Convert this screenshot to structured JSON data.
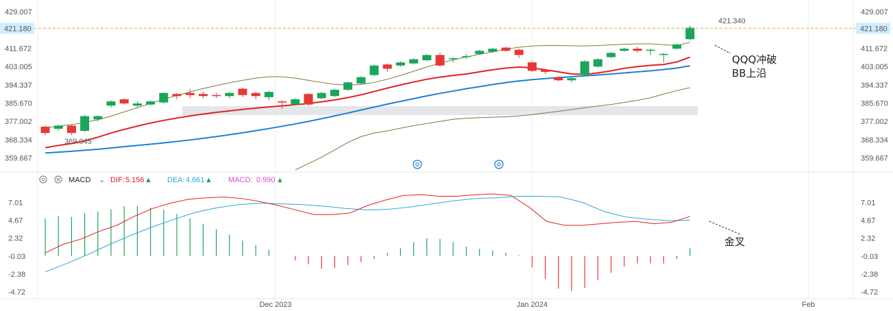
{
  "chart_data": {
    "type": "candlestick",
    "price_panel": {
      "ylim": [
        354,
        432
      ],
      "y_ticks": [
        "429.007",
        "411.672",
        "403.005",
        "394.337",
        "385.670",
        "377.002",
        "368.334",
        "359.667"
      ],
      "last_price_label": "421.180",
      "last_price": 421.18,
      "high_label": "421.340",
      "low_label": "369.045",
      "annotation_break": "QQQ冲破",
      "annotation_break2": "BB上沿",
      "candles": [
        {
          "o": 374.5,
          "c": 371.5,
          "h": 375.0,
          "l": 370.5
        },
        {
          "o": 373.5,
          "c": 375.0,
          "h": 375.5,
          "l": 372.5
        },
        {
          "o": 375.0,
          "c": 371.5,
          "h": 375.5,
          "l": 370.5
        },
        {
          "o": 372.5,
          "c": 379.5,
          "h": 380.0,
          "l": 372.0
        },
        {
          "o": 378.0,
          "c": 379.5,
          "h": 380.0,
          "l": 377.0
        },
        {
          "o": 384.5,
          "c": 386.5,
          "h": 387.0,
          "l": 383.5
        },
        {
          "o": 387.5,
          "c": 385.5,
          "h": 388.0,
          "l": 385.0
        },
        {
          "o": 384.5,
          "c": 385.5,
          "h": 386.5,
          "l": 383.5
        },
        {
          "o": 385.0,
          "c": 386.5,
          "h": 387.0,
          "l": 384.5
        },
        {
          "o": 386.0,
          "c": 390.5,
          "h": 391.0,
          "l": 385.5
        },
        {
          "o": 390.0,
          "c": 389.0,
          "h": 390.5,
          "l": 387.5
        },
        {
          "o": 390.5,
          "c": 389.5,
          "h": 392.5,
          "l": 388.0
        },
        {
          "o": 390.0,
          "c": 389.0,
          "h": 391.0,
          "l": 388.0
        },
        {
          "o": 389.5,
          "c": 389.0,
          "h": 390.5,
          "l": 388.0
        },
        {
          "o": 389.0,
          "c": 390.5,
          "h": 391.0,
          "l": 388.0
        },
        {
          "o": 392.5,
          "c": 389.5,
          "h": 393.0,
          "l": 388.5
        },
        {
          "o": 390.5,
          "c": 389.0,
          "h": 391.0,
          "l": 387.5
        },
        {
          "o": 388.5,
          "c": 391.0,
          "h": 391.5,
          "l": 387.0
        },
        {
          "o": 386.5,
          "c": 386.0,
          "h": 387.0,
          "l": 383.0
        },
        {
          "o": 385.0,
          "c": 387.5,
          "h": 388.0,
          "l": 384.5
        },
        {
          "o": 390.0,
          "c": 385.0,
          "h": 390.5,
          "l": 384.5
        },
        {
          "o": 388.0,
          "c": 390.5,
          "h": 391.0,
          "l": 387.5
        },
        {
          "o": 389.0,
          "c": 392.0,
          "h": 392.5,
          "l": 388.5
        },
        {
          "o": 392.0,
          "c": 395.5,
          "h": 396.0,
          "l": 391.5
        },
        {
          "o": 395.0,
          "c": 398.0,
          "h": 398.5,
          "l": 394.5
        },
        {
          "o": 399.0,
          "c": 403.5,
          "h": 404.0,
          "l": 398.5
        },
        {
          "o": 404.0,
          "c": 402.0,
          "h": 404.5,
          "l": 400.5
        },
        {
          "o": 403.5,
          "c": 405.0,
          "h": 405.5,
          "l": 403.0
        },
        {
          "o": 404.5,
          "c": 406.5,
          "h": 407.0,
          "l": 404.0
        },
        {
          "o": 406.0,
          "c": 408.5,
          "h": 409.0,
          "l": 405.5
        },
        {
          "o": 408.5,
          "c": 403.5,
          "h": 409.5,
          "l": 403.0
        },
        {
          "o": 406.5,
          "c": 407.0,
          "h": 407.5,
          "l": 405.0
        },
        {
          "o": 407.5,
          "c": 408.0,
          "h": 409.0,
          "l": 406.5
        },
        {
          "o": 409.0,
          "c": 410.5,
          "h": 411.0,
          "l": 408.5
        },
        {
          "o": 410.0,
          "c": 411.5,
          "h": 412.0,
          "l": 409.5
        },
        {
          "o": 412.0,
          "c": 410.5,
          "h": 412.5,
          "l": 410.0
        },
        {
          "o": 411.0,
          "c": 408.5,
          "h": 411.5,
          "l": 407.0
        },
        {
          "o": 405.0,
          "c": 401.0,
          "h": 405.5,
          "l": 400.5
        },
        {
          "o": 401.5,
          "c": 400.5,
          "h": 402.0,
          "l": 399.5
        },
        {
          "o": 398.0,
          "c": 396.5,
          "h": 398.5,
          "l": 396.0
        },
        {
          "o": 396.5,
          "c": 397.5,
          "h": 398.5,
          "l": 395.5
        },
        {
          "o": 399.0,
          "c": 405.5,
          "h": 406.0,
          "l": 398.5
        },
        {
          "o": 403.0,
          "c": 406.5,
          "h": 407.0,
          "l": 402.5
        },
        {
          "o": 407.5,
          "c": 409.5,
          "h": 410.0,
          "l": 407.0
        },
        {
          "o": 410.5,
          "c": 411.5,
          "h": 412.0,
          "l": 410.0
        },
        {
          "o": 411.5,
          "c": 410.5,
          "h": 412.5,
          "l": 409.5
        },
        {
          "o": 410.5,
          "c": 411.0,
          "h": 411.5,
          "l": 408.5
        },
        {
          "o": 408.5,
          "c": 409.0,
          "h": 409.5,
          "l": 405.0
        },
        {
          "o": 411.5,
          "c": 413.5,
          "h": 414.0,
          "l": 411.0
        },
        {
          "o": 416.0,
          "c": 421.5,
          "h": 422.5,
          "l": 415.5
        }
      ],
      "ma_red": [
        364.5,
        365.6,
        366.5,
        367.8,
        369.5,
        371.5,
        373.2,
        374.8,
        376.2,
        377.5,
        378.6,
        379.6,
        380.5,
        381.3,
        382.0,
        382.7,
        383.3,
        383.9,
        384.4,
        384.9,
        385.5,
        386.3,
        387.2,
        388.3,
        389.6,
        391.2,
        392.8,
        394.3,
        395.7,
        397.0,
        398.0,
        398.8,
        399.5,
        400.5,
        401.5,
        402.3,
        402.8,
        402.4,
        401.5,
        400.5,
        399.5,
        399.3,
        400.0,
        401.0,
        402.2,
        403.0,
        403.6,
        404.0,
        405.2,
        407.5
      ],
      "ma_blue": [
        362.0,
        362.4,
        362.8,
        363.3,
        363.8,
        364.4,
        365.0,
        365.6,
        366.2,
        366.8,
        367.5,
        368.2,
        369.0,
        369.8,
        370.7,
        371.6,
        372.6,
        373.6,
        374.7,
        375.8,
        377.0,
        378.3,
        379.6,
        381.0,
        382.4,
        383.8,
        385.2,
        386.5,
        387.8,
        389.1,
        390.3,
        391.4,
        392.5,
        393.5,
        394.5,
        395.4,
        396.2,
        396.8,
        397.3,
        397.8,
        398.2,
        398.6,
        399.0,
        399.5,
        400.0,
        400.5,
        401.0,
        401.6,
        402.3,
        403.4
      ],
      "bb_upper": [
        374.0,
        374.8,
        375.5,
        376.5,
        377.8,
        379.5,
        381.5,
        383.5,
        385.5,
        387.5,
        389.3,
        391.0,
        392.6,
        394.0,
        395.3,
        396.5,
        397.5,
        398.2,
        398.2,
        397.5,
        396.5,
        395.5,
        394.6,
        394.2,
        394.5,
        395.5,
        397.0,
        398.8,
        400.8,
        402.8,
        404.6,
        406.2,
        407.6,
        408.8,
        410.0,
        411.2,
        412.2,
        412.8,
        413.0,
        413.0,
        412.9,
        412.8,
        413.0,
        413.3,
        413.6,
        413.8,
        413.8,
        413.4,
        413.0,
        414.5
      ],
      "bb_lower": [
        null,
        null,
        null,
        null,
        null,
        null,
        null,
        null,
        null,
        null,
        null,
        null,
        null,
        null,
        null,
        null,
        null,
        null,
        null,
        354.0,
        357.0,
        360.0,
        363.5,
        367.0,
        369.8,
        371.5,
        372.5,
        373.8,
        375.0,
        376.0,
        377.0,
        378.0,
        378.5,
        378.8,
        379.0,
        379.2,
        379.6,
        380.2,
        381.0,
        381.8,
        382.6,
        383.5,
        384.3,
        385.0,
        386.0,
        387.0,
        388.2,
        390.0,
        391.6,
        393.0
      ]
    },
    "macd_panel": {
      "ylim": [
        -5.6,
        8.2
      ],
      "y_ticks": [
        "7.01",
        "4.67",
        "2.32",
        "-0.03",
        "-2.38",
        "-4.72"
      ],
      "legend": {
        "name": "MACD",
        "dif_label": "DIF:",
        "dif_value": "5.156",
        "dea_label": "DEA:",
        "dea_value": "4.661",
        "macd_label": "MACD:",
        "macd_value": "0.990"
      },
      "annotation_cross": "金叉",
      "hist": [
        4.9,
        5.2,
        5.1,
        5.6,
        5.8,
        6.1,
        6.5,
        6.5,
        6.3,
        6.0,
        5.5,
        4.9,
        4.2,
        3.5,
        2.8,
        2.0,
        1.4,
        0.8,
        0.0,
        -0.6,
        -1.1,
        -1.7,
        -1.6,
        -1.2,
        -0.8,
        -0.4,
        0.4,
        1.0,
        1.8,
        2.3,
        2.2,
        1.8,
        1.2,
        0.9,
        0.7,
        0.4,
        0.1,
        -1.5,
        -3.0,
        -4.3,
        -4.6,
        -4.2,
        -3.2,
        -2.2,
        -1.4,
        -1.0,
        -1.0,
        -1.0,
        -0.4,
        1.0
      ],
      "dif": [
        0.4,
        1.5,
        2.2,
        3.2,
        4.0,
        5.2,
        6.2,
        6.9,
        7.4,
        7.6,
        7.7,
        7.5,
        7.1,
        6.6,
        6.0,
        5.4,
        5.4,
        5.6,
        6.6,
        7.3,
        7.9,
        8.0,
        7.8,
        7.8,
        8.0,
        8.1,
        7.9,
        6.4,
        4.5,
        4.0,
        4.0,
        4.2,
        4.4,
        4.5,
        4.2,
        4.4,
        5.16
      ],
      "dif_x": [
        0,
        1,
        2,
        3,
        4,
        5,
        6,
        7,
        8,
        9,
        10,
        11,
        12,
        13,
        14,
        15,
        16,
        17,
        18,
        19,
        20,
        21,
        22,
        23,
        24,
        25,
        26,
        27,
        28,
        29,
        30,
        31,
        32,
        33,
        34,
        35,
        36
      ],
      "dea": [
        -2.1,
        -1.0,
        0.2,
        1.5,
        2.7,
        3.8,
        4.8,
        5.7,
        6.3,
        6.7,
        6.9,
        6.8,
        6.7,
        6.5,
        6.2,
        6.0,
        6.1,
        6.4,
        6.8,
        7.2,
        7.5,
        7.6,
        7.8,
        7.8,
        7.7,
        7.0,
        5.8,
        5.1,
        4.8,
        4.6,
        4.66
      ]
    },
    "x_axis": {
      "labels": [
        "Dec 2023",
        "Jan 2024",
        "Feb"
      ],
      "label_index": [
        17.5,
        37,
        58
      ]
    },
    "colors": {
      "up": "#1aa55a",
      "down": "#e53935",
      "ma_red": "#e02020",
      "ma_blue": "#1e7fd8",
      "bb": "#7a7a3a",
      "dif": "#e02020",
      "dea": "#2aa8d8",
      "price_line": "#e8a03a",
      "price_tag": "#cfeeff"
    }
  }
}
